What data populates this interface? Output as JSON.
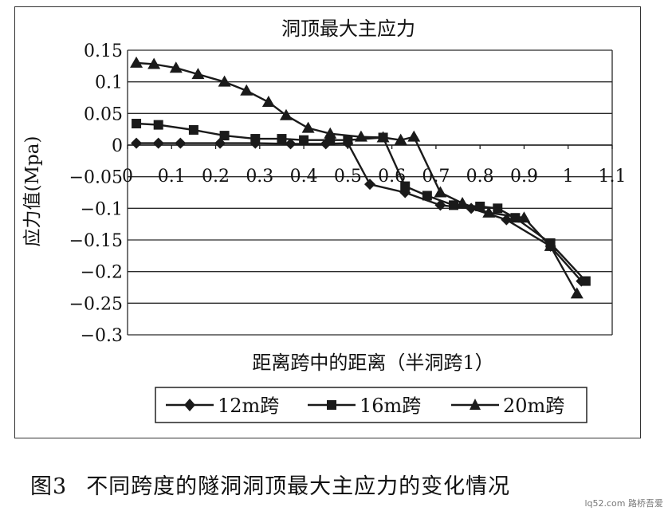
{
  "caption": {
    "figure_number": "图3",
    "text": "不同跨度的隧洞洞顶最大主应力的变化情况"
  },
  "watermark": "lq52.com 路桥吾爱",
  "colors": {
    "line": "#1a1a1a",
    "grid": "#2a2a2a",
    "frame": "#333333"
  },
  "chart_data": {
    "type": "line",
    "title": "洞顶最大主应力",
    "xlabel": "距离跨中的距离（半洞跨1）",
    "ylabel": "应力值(Mpa)",
    "xlim": [
      0,
      1.1
    ],
    "ylim": [
      -0.3,
      0.15
    ],
    "x_ticks": [
      0,
      0.1,
      0.2,
      0.3,
      0.4,
      0.5,
      0.6,
      0.7,
      0.8,
      0.9,
      1,
      1.1
    ],
    "x_tick_labels": [
      "0",
      "0.1",
      "0.2",
      "0.3",
      "0.4",
      "0.5",
      "0.6",
      "0.7",
      "0.8",
      "0.9",
      "1",
      "1.1"
    ],
    "y_ticks": [
      0.15,
      0.1,
      0.05,
      0,
      -0.05,
      -0.1,
      -0.15,
      -0.2,
      -0.25,
      -0.3
    ],
    "y_tick_labels": [
      "0.15",
      "0.1",
      "0.05",
      "0",
      "−0.05",
      "−0.1",
      "−0.15",
      "−0.2",
      "−0.25",
      "−0.3"
    ],
    "grid": "horizontal",
    "legend_position": "bottom",
    "series": [
      {
        "name": "12m跨",
        "marker": "diamond",
        "x": [
          0.02,
          0.07,
          0.12,
          0.21,
          0.29,
          0.37,
          0.45,
          0.5,
          0.55,
          0.63,
          0.71,
          0.78,
          0.86,
          0.96,
          1.03
        ],
        "y": [
          0.003,
          0.003,
          0.003,
          0.003,
          0.003,
          0.002,
          0.002,
          0.003,
          -0.062,
          -0.075,
          -0.095,
          -0.1,
          -0.118,
          -0.16,
          -0.215
        ]
      },
      {
        "name": "16m跨",
        "marker": "square",
        "x": [
          0.02,
          0.07,
          0.15,
          0.22,
          0.29,
          0.35,
          0.4,
          0.46,
          0.5,
          0.58,
          0.63,
          0.68,
          0.74,
          0.8,
          0.84,
          0.88,
          0.96,
          1.04
        ],
        "y": [
          0.034,
          0.032,
          0.024,
          0.015,
          0.01,
          0.01,
          0.008,
          0.008,
          0.008,
          0.012,
          -0.065,
          -0.08,
          -0.095,
          -0.097,
          -0.1,
          -0.115,
          -0.155,
          -0.215
        ]
      },
      {
        "name": "20m跨",
        "marker": "triangle",
        "x": [
          0.02,
          0.06,
          0.11,
          0.16,
          0.22,
          0.27,
          0.32,
          0.36,
          0.41,
          0.46,
          0.53,
          0.58,
          0.62,
          0.65,
          0.71,
          0.76,
          0.82,
          0.9,
          0.96,
          1.02
        ],
        "y": [
          0.13,
          0.128,
          0.122,
          0.112,
          0.1,
          0.086,
          0.068,
          0.047,
          0.027,
          0.018,
          0.013,
          0.012,
          0.008,
          0.013,
          -0.075,
          -0.092,
          -0.107,
          -0.115,
          -0.16,
          -0.235
        ]
      }
    ]
  }
}
